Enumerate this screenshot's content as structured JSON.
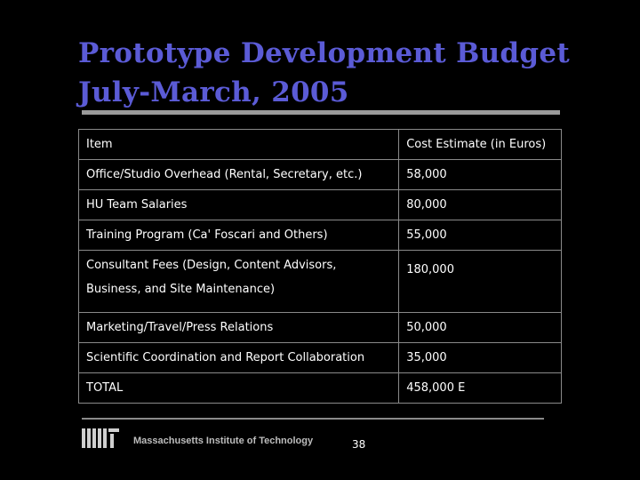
{
  "slide": {
    "title_line1": "Prototype Development Budget",
    "title_line2": "July-March, 2005"
  },
  "table": {
    "header": {
      "item": "Item",
      "cost": "Cost Estimate (in Euros)"
    },
    "rows": [
      {
        "item": "Office/Studio Overhead (Rental, Secretary, etc.)",
        "cost": "58,000"
      },
      {
        "item": "HU Team Salaries",
        "cost": "80,000"
      },
      {
        "item": "Training Program (Ca' Foscari and Others)",
        "cost": "55,000"
      },
      {
        "item": "Consultant Fees (Design, Content Advisors, Business, and Site Maintenance)",
        "cost": "180,000"
      },
      {
        "item": "Marketing/Travel/Press Relations",
        "cost": "50,000"
      },
      {
        "item": "Scientific Coordination and Report Collaboration",
        "cost": "35,000"
      },
      {
        "item": "TOTAL",
        "cost": "458,000 E"
      }
    ]
  },
  "footer": {
    "institution": "Massachusetts Institute of Technology",
    "page_number": "38"
  },
  "colors": {
    "background": "#000000",
    "title": "#5b5bd6",
    "text": "#ffffff",
    "rule": "#9a9a9a"
  }
}
